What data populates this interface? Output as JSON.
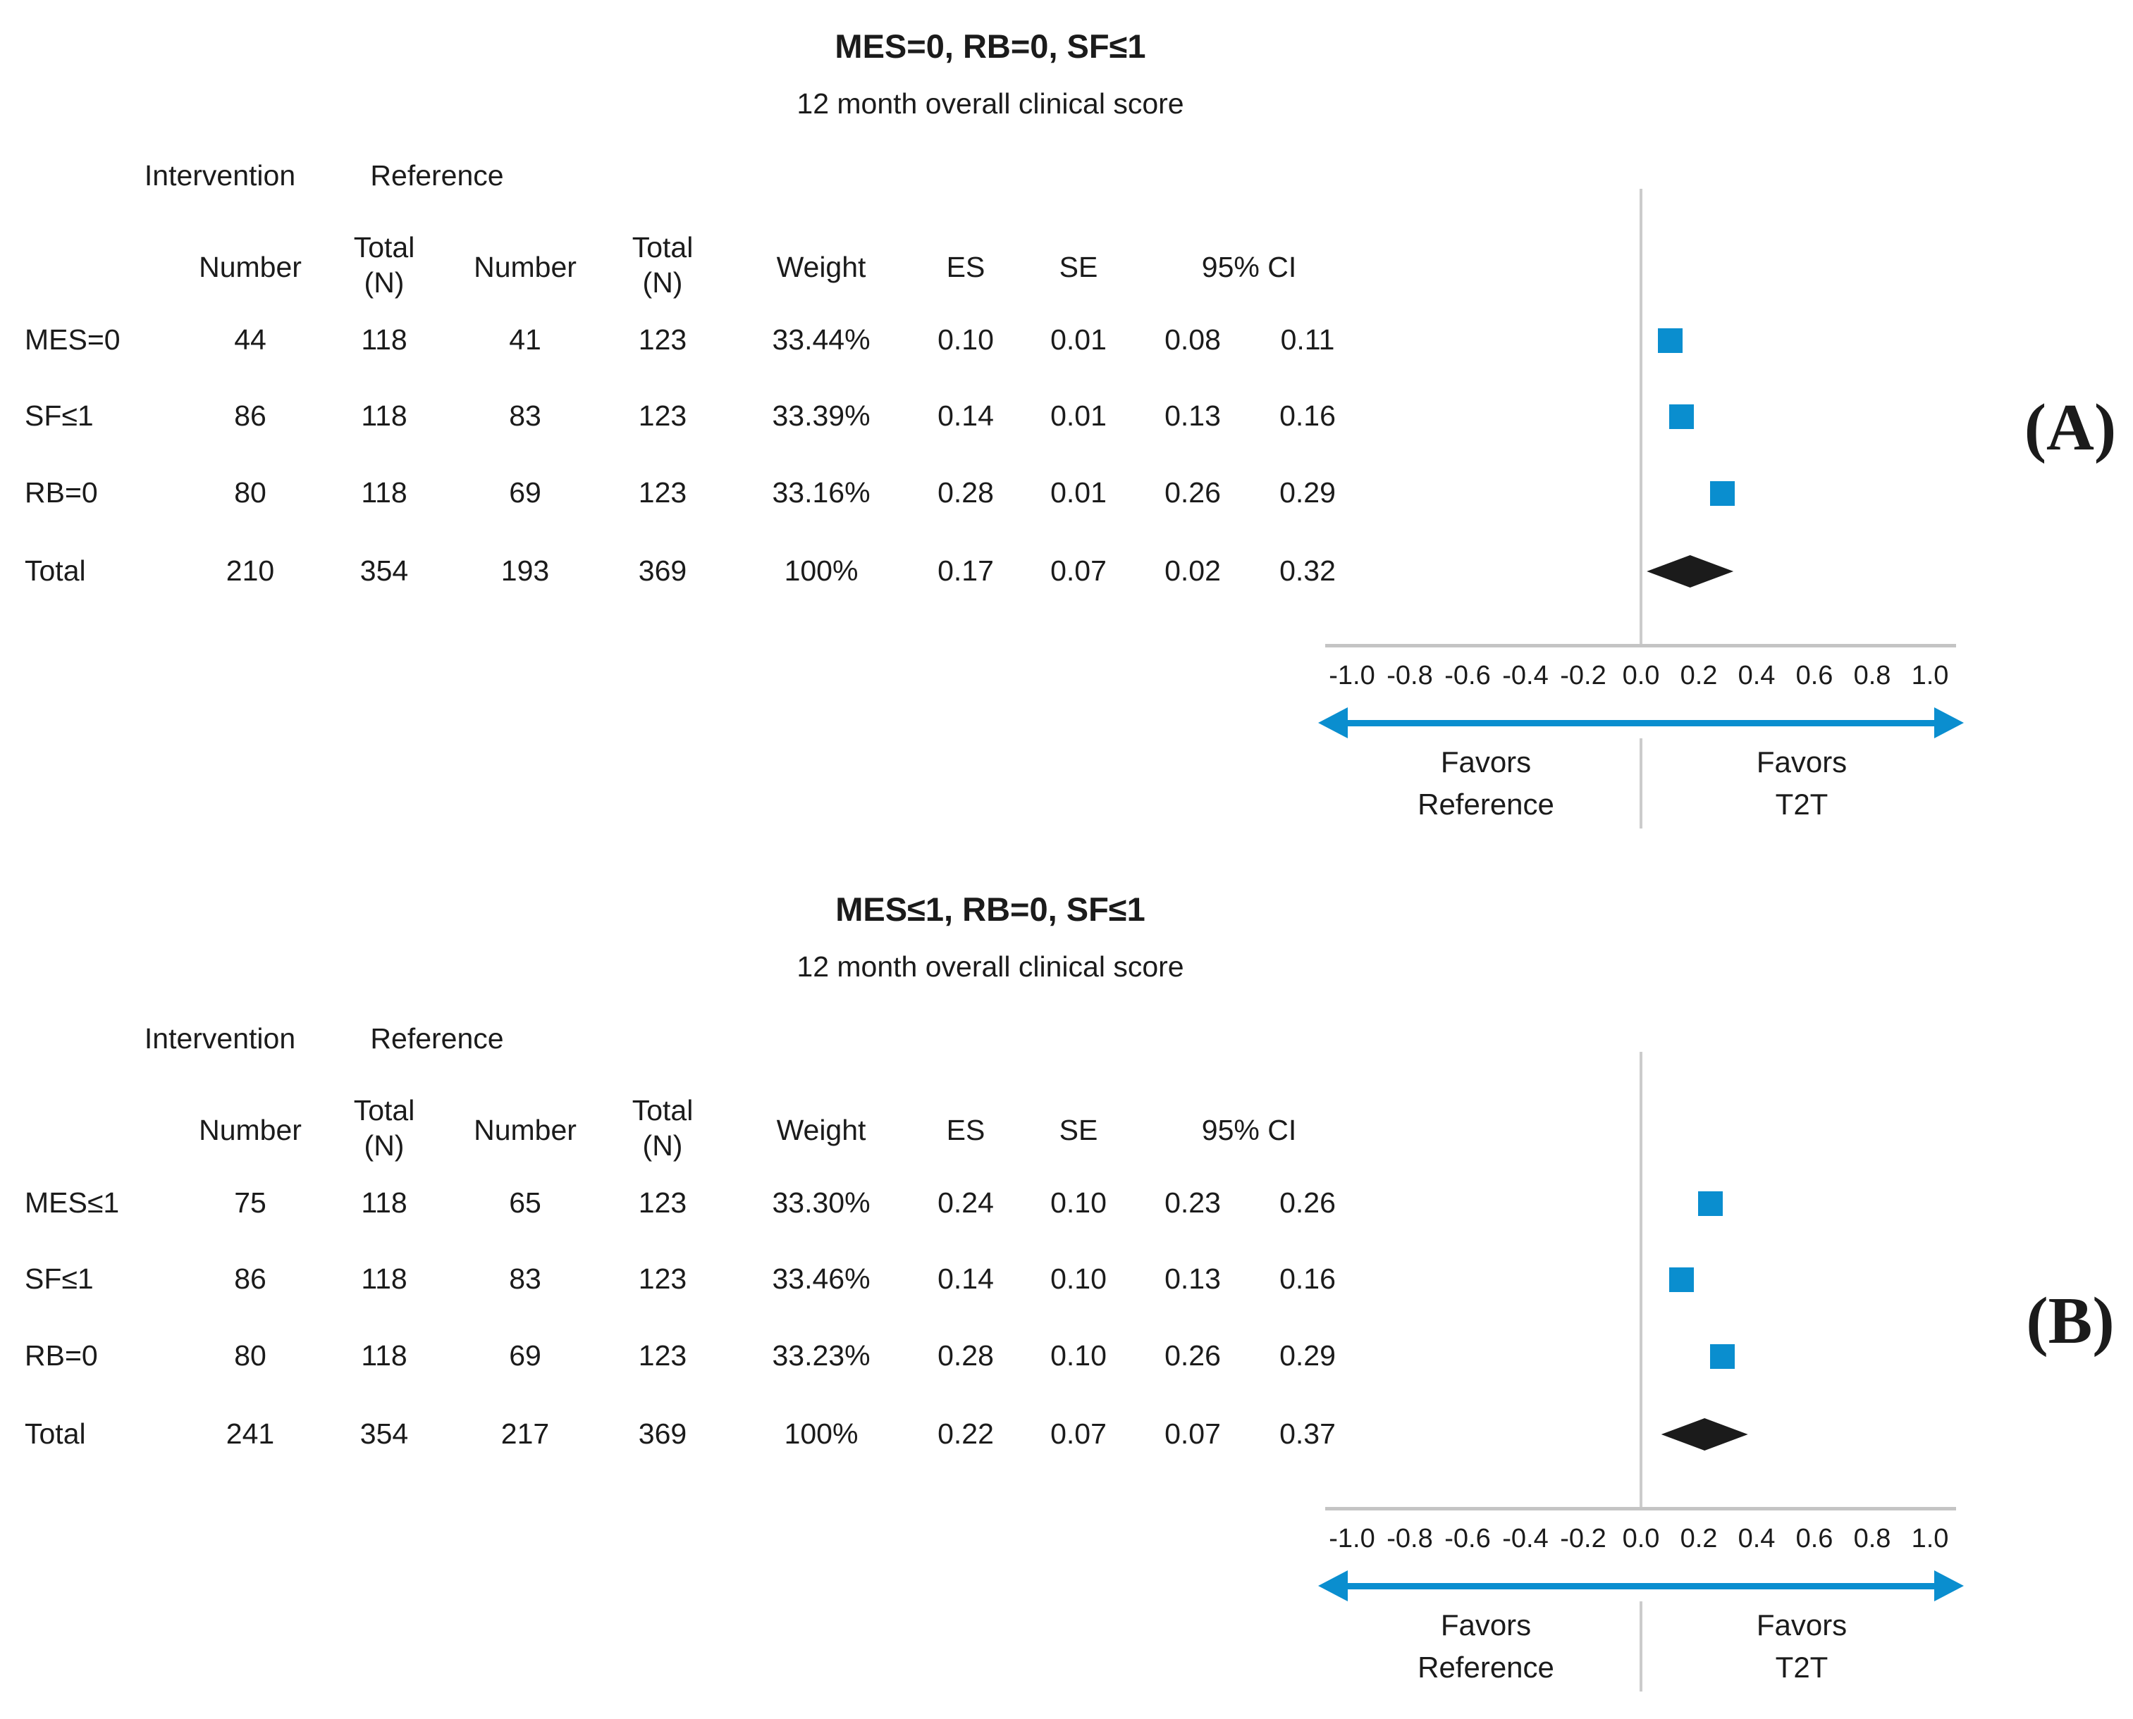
{
  "figure": {
    "colors": {
      "marker_blue": "#0a8ecf",
      "arrow_blue": "#0a8ecf",
      "diamond_black": "#1b1b1b",
      "zero_line_gray": "#cccccc",
      "axis_line_gray": "#c4c4c4",
      "text_black": "#1b1b1b"
    },
    "panels": [
      {
        "tag": "(A)",
        "title": "MES=0, RB=0, SF≤1",
        "subtitle": "12 month overall clinical score",
        "group_headers": {
          "intervention": "Intervention",
          "reference": "Reference"
        },
        "columns": {
          "number1": "Number",
          "total1_line1": "Total",
          "total1_line2": "(N)",
          "number2": "Number",
          "total2_line1": "Total",
          "total2_line2": "(N)",
          "weight": "Weight",
          "es": "ES",
          "se": "SE",
          "ci": "95% CI"
        },
        "rows": [
          {
            "label": "MES=0",
            "int_n": "44",
            "int_total": "118",
            "ref_n": "41",
            "ref_total": "123",
            "weight": "33.44%",
            "es": "0.10",
            "se": "0.01",
            "ci_low": "0.08",
            "ci_high": "0.11",
            "marker": "square"
          },
          {
            "label": "SF≤1",
            "int_n": "86",
            "int_total": "118",
            "ref_n": "83",
            "ref_total": "123",
            "weight": "33.39%",
            "es": "0.14",
            "se": "0.01",
            "ci_low": "0.13",
            "ci_high": "0.16",
            "marker": "square"
          },
          {
            "label": "RB=0",
            "int_n": "80",
            "int_total": "118",
            "ref_n": "69",
            "ref_total": "123",
            "weight": "33.16%",
            "es": "0.28",
            "se": "0.01",
            "ci_low": "0.26",
            "ci_high": "0.29",
            "marker": "square"
          },
          {
            "label": "Total",
            "int_n": "210",
            "int_total": "354",
            "ref_n": "193",
            "ref_total": "369",
            "weight": "100%",
            "es": "0.17",
            "se": "0.07",
            "ci_low": "0.02",
            "ci_high": "0.32",
            "marker": "diamond"
          }
        ],
        "axis": {
          "ticks": [
            "-1.0",
            "-0.8",
            "-0.6",
            "-0.4",
            "-0.2",
            "0.0",
            "0.2",
            "0.4",
            "0.6",
            "0.8",
            "1.0"
          ]
        },
        "favors_left": {
          "line1": "Favors",
          "line2": "Reference"
        },
        "favors_right": {
          "line1": "Favors",
          "line2": "T2T"
        }
      },
      {
        "tag": "(B)",
        "title": "MES≤1, RB=0, SF≤1",
        "subtitle": "12 month overall clinical score",
        "group_headers": {
          "intervention": "Intervention",
          "reference": "Reference"
        },
        "columns": {
          "number1": "Number",
          "total1_line1": "Total",
          "total1_line2": "(N)",
          "number2": "Number",
          "total2_line1": "Total",
          "total2_line2": "(N)",
          "weight": "Weight",
          "es": "ES",
          "se": "SE",
          "ci": "95% CI"
        },
        "rows": [
          {
            "label": "MES≤1",
            "int_n": "75",
            "int_total": "118",
            "ref_n": "65",
            "ref_total": "123",
            "weight": "33.30%",
            "es": "0.24",
            "se": "0.10",
            "ci_low": "0.23",
            "ci_high": "0.26",
            "marker": "square"
          },
          {
            "label": "SF≤1",
            "int_n": "86",
            "int_total": "118",
            "ref_n": "83",
            "ref_total": "123",
            "weight": "33.46%",
            "es": "0.14",
            "se": "0.10",
            "ci_low": "0.13",
            "ci_high": "0.16",
            "marker": "square"
          },
          {
            "label": "RB=0",
            "int_n": "80",
            "int_total": "118",
            "ref_n": "69",
            "ref_total": "123",
            "weight": "33.23%",
            "es": "0.28",
            "se": "0.10",
            "ci_low": "0.26",
            "ci_high": "0.29",
            "marker": "square"
          },
          {
            "label": "Total",
            "int_n": "241",
            "int_total": "354",
            "ref_n": "217",
            "ref_total": "369",
            "weight": "100%",
            "es": "0.22",
            "se": "0.07",
            "ci_low": "0.07",
            "ci_high": "0.37",
            "marker": "diamond"
          }
        ],
        "axis": {
          "ticks": [
            "-1.0",
            "-0.8",
            "-0.6",
            "-0.4",
            "-0.2",
            "0.0",
            "0.2",
            "0.4",
            "0.6",
            "0.8",
            "1.0"
          ]
        },
        "favors_left": {
          "line1": "Favors",
          "line2": "Reference"
        },
        "favors_right": {
          "line1": "Favors",
          "line2": "T2T"
        }
      }
    ]
  },
  "chart_data": [
    {
      "type": "scatter",
      "chart_kind": "forest-plot",
      "title": "MES=0, RB=0, SF≤1",
      "subtitle": "12 month overall clinical score",
      "panel_tag": "(A)",
      "xlabel": "",
      "xlim": [
        -1.0,
        1.0
      ],
      "x_ticks": [
        -1.0,
        -0.8,
        -0.6,
        -0.4,
        -0.2,
        0.0,
        0.2,
        0.4,
        0.6,
        0.8,
        1.0
      ],
      "zero_reference_line": 0.0,
      "grid": "off",
      "legend": "none",
      "categories": [
        "MES=0",
        "SF≤1",
        "RB=0",
        "Total"
      ],
      "series": [
        {
          "name": "ES",
          "values": [
            0.1,
            0.14,
            0.28,
            0.17
          ],
          "markers": [
            "square",
            "square",
            "square",
            "diamond"
          ],
          "colors": [
            "#0a8ecf",
            "#0a8ecf",
            "#0a8ecf",
            "#1b1b1b"
          ]
        }
      ],
      "se": [
        0.01,
        0.01,
        0.01,
        0.07
      ],
      "ci_low": [
        0.08,
        0.13,
        0.26,
        0.02
      ],
      "ci_high": [
        0.11,
        0.16,
        0.29,
        0.32
      ],
      "weights_pct": [
        33.44,
        33.39,
        33.16,
        100
      ],
      "intervention": {
        "numbers": [
          44,
          86,
          80,
          210
        ],
        "totals": [
          118,
          118,
          118,
          354
        ]
      },
      "reference": {
        "numbers": [
          41,
          83,
          69,
          193
        ],
        "totals": [
          123,
          123,
          123,
          369
        ]
      },
      "annotations": {
        "favors_left": "Favors Reference",
        "favors_right": "Favors T2T"
      }
    },
    {
      "type": "scatter",
      "chart_kind": "forest-plot",
      "title": "MES≤1, RB=0, SF≤1",
      "subtitle": "12 month overall clinical score",
      "panel_tag": "(B)",
      "xlabel": "",
      "xlim": [
        -1.0,
        1.0
      ],
      "x_ticks": [
        -1.0,
        -0.8,
        -0.6,
        -0.4,
        -0.2,
        0.0,
        0.2,
        0.4,
        0.6,
        0.8,
        1.0
      ],
      "zero_reference_line": 0.0,
      "grid": "off",
      "legend": "none",
      "categories": [
        "MES≤1",
        "SF≤1",
        "RB=0",
        "Total"
      ],
      "series": [
        {
          "name": "ES",
          "values": [
            0.24,
            0.14,
            0.28,
            0.22
          ],
          "markers": [
            "square",
            "square",
            "square",
            "diamond"
          ],
          "colors": [
            "#0a8ecf",
            "#0a8ecf",
            "#0a8ecf",
            "#1b1b1b"
          ]
        }
      ],
      "se": [
        0.1,
        0.1,
        0.1,
        0.07
      ],
      "ci_low": [
        0.23,
        0.13,
        0.26,
        0.07
      ],
      "ci_high": [
        0.26,
        0.16,
        0.29,
        0.37
      ],
      "weights_pct": [
        33.3,
        33.46,
        33.23,
        100
      ],
      "intervention": {
        "numbers": [
          75,
          86,
          80,
          241
        ],
        "totals": [
          118,
          118,
          118,
          354
        ]
      },
      "reference": {
        "numbers": [
          65,
          83,
          69,
          217
        ],
        "totals": [
          123,
          123,
          123,
          369
        ]
      },
      "annotations": {
        "favors_left": "Favors Reference",
        "favors_right": "Favors T2T"
      }
    }
  ]
}
